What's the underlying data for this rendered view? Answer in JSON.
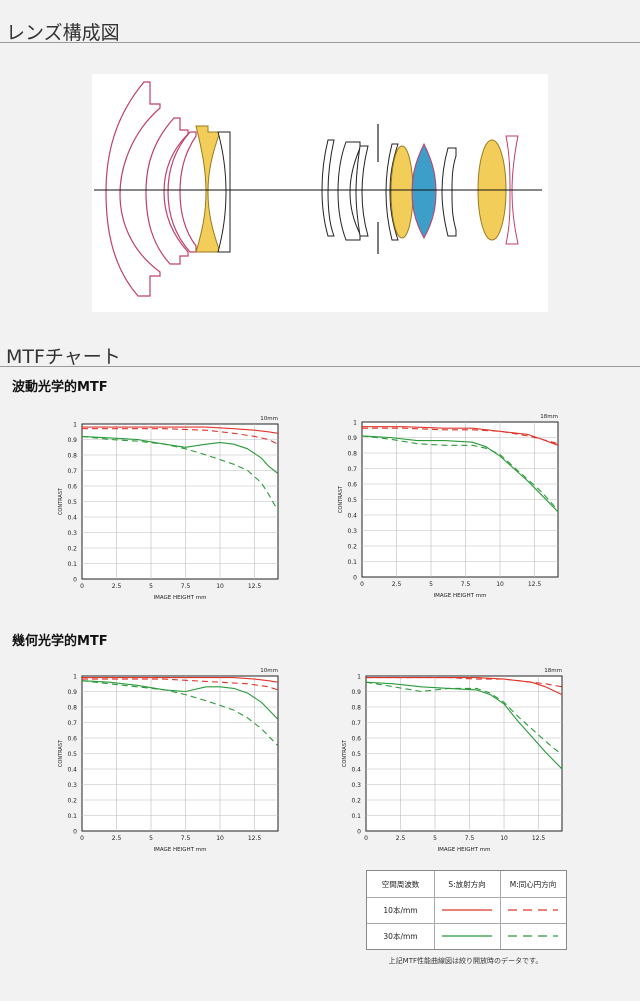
{
  "sections": {
    "lens_title": "レンズ構成図",
    "mtf_title": "MTFチャート",
    "wave_title": "波動光学的MTF",
    "geo_title": "幾何光学的MTF"
  },
  "colors": {
    "red": "#e0352b",
    "green": "#2a9a3a",
    "lens_pink": "#c0406a",
    "lens_yellow": "#f3cd5a",
    "lens_blue": "#3d9ec9"
  },
  "legend": {
    "header_freq": "空間周波数",
    "header_s": "S:放射方向",
    "header_m": "M:同心円方向",
    "row1": "10本/mm",
    "row2": "30本/mm"
  },
  "note": "上記MTF性能曲線図は絞り開放時のデータです。",
  "chart_data": [
    {
      "type": "line",
      "group": "波動光学的MTF",
      "focal": "10mm",
      "xlabel": "IMAGE HEIGHT   mm",
      "ylabel": "CONTRAST",
      "xlim": [
        0,
        14.2
      ],
      "ylim": [
        0,
        1
      ],
      "xticks": [
        "0",
        "2.5",
        "5",
        "7.5",
        "10",
        "12.5"
      ],
      "yticks": [
        "0",
        "0.1",
        "0.2",
        "0.3",
        "0.4",
        "0.5",
        "0.6",
        "0.7",
        "0.8",
        "0.9",
        "1"
      ],
      "series": [
        {
          "freq": "10",
          "dir": "S",
          "x": [
            0,
            3,
            6,
            9,
            11,
            12.5,
            13.5,
            14.2
          ],
          "y": [
            0.98,
            0.98,
            0.98,
            0.98,
            0.97,
            0.96,
            0.95,
            0.94
          ]
        },
        {
          "freq": "10",
          "dir": "M",
          "x": [
            0,
            3,
            6,
            9,
            11,
            12.5,
            13.5,
            14.2
          ],
          "y": [
            0.97,
            0.97,
            0.97,
            0.96,
            0.94,
            0.92,
            0.9,
            0.87
          ]
        },
        {
          "freq": "30",
          "dir": "S",
          "x": [
            0,
            2,
            4,
            6,
            7.5,
            9,
            10,
            11,
            12,
            13,
            13.5,
            14.2
          ],
          "y": [
            0.92,
            0.91,
            0.9,
            0.87,
            0.85,
            0.87,
            0.88,
            0.87,
            0.84,
            0.78,
            0.73,
            0.68
          ]
        },
        {
          "freq": "30",
          "dir": "M",
          "x": [
            0,
            2,
            4,
            6,
            7.5,
            9,
            10,
            11,
            12,
            13,
            13.5,
            14.2
          ],
          "y": [
            0.92,
            0.9,
            0.89,
            0.87,
            0.84,
            0.8,
            0.77,
            0.74,
            0.7,
            0.62,
            0.55,
            0.44
          ]
        }
      ]
    },
    {
      "type": "line",
      "group": "波動光学的MTF",
      "focal": "18mm",
      "xlabel": "IMAGE HEIGHT   mm",
      "ylabel": "CONTRAST",
      "xlim": [
        0,
        14.2
      ],
      "ylim": [
        0,
        1
      ],
      "xticks": [
        "0",
        "2.5",
        "5",
        "7.5",
        "10",
        "12.5"
      ],
      "yticks": [
        "0",
        "0.1",
        "0.2",
        "0.3",
        "0.4",
        "0.5",
        "0.6",
        "0.7",
        "0.8",
        "0.9",
        "1"
      ],
      "series": [
        {
          "freq": "10",
          "dir": "S",
          "x": [
            0,
            3,
            6,
            8,
            10,
            12,
            13,
            14.2
          ],
          "y": [
            0.97,
            0.97,
            0.96,
            0.96,
            0.94,
            0.92,
            0.89,
            0.85
          ]
        },
        {
          "freq": "10",
          "dir": "M",
          "x": [
            0,
            3,
            6,
            8,
            10,
            12,
            13,
            14.2
          ],
          "y": [
            0.96,
            0.96,
            0.95,
            0.95,
            0.94,
            0.91,
            0.89,
            0.86
          ]
        },
        {
          "freq": "30",
          "dir": "S",
          "x": [
            0,
            2,
            4,
            6,
            8,
            9,
            10,
            11,
            12,
            13,
            14.2
          ],
          "y": [
            0.91,
            0.9,
            0.88,
            0.88,
            0.87,
            0.84,
            0.78,
            0.7,
            0.62,
            0.53,
            0.42
          ]
        },
        {
          "freq": "30",
          "dir": "M",
          "x": [
            0,
            2,
            4,
            6,
            8,
            9,
            10,
            11,
            12,
            13,
            14.2
          ],
          "y": [
            0.91,
            0.89,
            0.86,
            0.85,
            0.85,
            0.83,
            0.79,
            0.71,
            0.63,
            0.55,
            0.43
          ]
        }
      ]
    },
    {
      "type": "line",
      "group": "幾何光学的MTF",
      "focal": "10mm",
      "xlabel": "IMAGE HEIGHT   mm",
      "ylabel": "CONTRAST",
      "xlim": [
        0,
        14.2
      ],
      "ylim": [
        0,
        1
      ],
      "xticks": [
        "0",
        "2.5",
        "5",
        "7.5",
        "10",
        "12.5"
      ],
      "yticks": [
        "0",
        "0.1",
        "0.2",
        "0.3",
        "0.4",
        "0.5",
        "0.6",
        "0.7",
        "0.8",
        "0.9",
        "1"
      ],
      "series": [
        {
          "freq": "10",
          "dir": "S",
          "x": [
            0,
            3,
            6,
            9,
            11,
            12.5,
            13.5,
            14.2
          ],
          "y": [
            0.99,
            0.99,
            0.99,
            0.99,
            0.99,
            0.98,
            0.97,
            0.96
          ]
        },
        {
          "freq": "10",
          "dir": "M",
          "x": [
            0,
            3,
            6,
            8,
            10,
            12,
            13.5,
            14.2
          ],
          "y": [
            0.98,
            0.98,
            0.98,
            0.97,
            0.96,
            0.95,
            0.93,
            0.91
          ]
        },
        {
          "freq": "30",
          "dir": "S",
          "x": [
            0,
            2,
            4,
            6,
            7.5,
            9,
            10,
            11,
            12,
            13,
            14.2
          ],
          "y": [
            0.97,
            0.96,
            0.94,
            0.91,
            0.9,
            0.93,
            0.93,
            0.92,
            0.89,
            0.83,
            0.72
          ]
        },
        {
          "freq": "30",
          "dir": "M",
          "x": [
            0,
            2,
            4,
            6,
            7.5,
            9,
            10,
            11,
            12,
            13,
            14.2
          ],
          "y": [
            0.97,
            0.95,
            0.93,
            0.91,
            0.88,
            0.84,
            0.81,
            0.78,
            0.73,
            0.66,
            0.55
          ]
        }
      ]
    },
    {
      "type": "line",
      "group": "幾何光学的MTF",
      "focal": "18mm",
      "xlabel": "IMAGE HEIGHT   mm",
      "ylabel": "CONTRAST",
      "xlim": [
        0,
        14.2
      ],
      "ylim": [
        0,
        1
      ],
      "xticks": [
        "0",
        "2.5",
        "5",
        "7.5",
        "10",
        "12.5"
      ],
      "yticks": [
        "0",
        "0.1",
        "0.2",
        "0.3",
        "0.4",
        "0.5",
        "0.6",
        "0.7",
        "0.8",
        "0.9",
        "1"
      ],
      "series": [
        {
          "freq": "10",
          "dir": "S",
          "x": [
            0,
            3,
            6,
            8,
            10,
            12,
            13,
            14.2
          ],
          "y": [
            0.99,
            0.99,
            0.99,
            0.99,
            0.98,
            0.96,
            0.93,
            0.88
          ]
        },
        {
          "freq": "10",
          "dir": "M",
          "x": [
            0,
            3,
            6,
            8,
            10,
            12,
            13,
            14.2
          ],
          "y": [
            0.99,
            0.99,
            0.99,
            0.98,
            0.98,
            0.96,
            0.95,
            0.93
          ]
        },
        {
          "freq": "30",
          "dir": "S",
          "x": [
            0,
            2,
            4,
            6,
            8,
            9,
            10,
            11,
            12,
            13,
            14.2
          ],
          "y": [
            0.96,
            0.95,
            0.93,
            0.92,
            0.91,
            0.88,
            0.82,
            0.71,
            0.61,
            0.51,
            0.4
          ]
        },
        {
          "freq": "30",
          "dir": "M",
          "x": [
            0,
            2,
            4,
            6,
            8,
            9,
            10,
            11,
            12,
            13,
            14.2
          ],
          "y": [
            0.96,
            0.93,
            0.9,
            0.92,
            0.92,
            0.89,
            0.83,
            0.74,
            0.66,
            0.58,
            0.49
          ]
        }
      ]
    }
  ]
}
